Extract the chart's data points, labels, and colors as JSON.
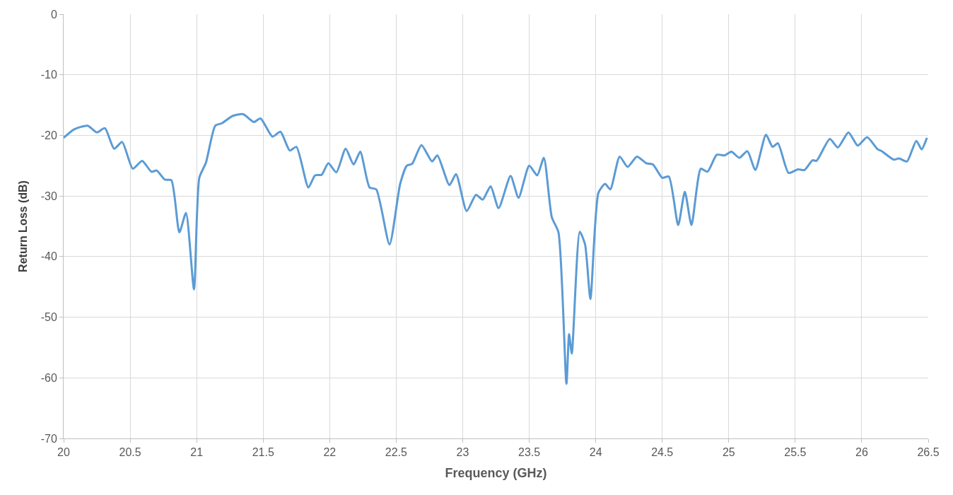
{
  "chart_data": {
    "type": "line",
    "xlabel": "Frequency (GHz)",
    "ylabel": "Return Loss (dB)",
    "xlim": [
      20,
      26.5
    ],
    "xticks": [
      20,
      20.5,
      21,
      21.5,
      22,
      22.5,
      23,
      23.5,
      24,
      24.5,
      25,
      25.5,
      26,
      26.5
    ],
    "ylim": [
      -70,
      0
    ],
    "yticks": [
      -70,
      -60,
      -50,
      -40,
      -30,
      -20,
      -10,
      0
    ],
    "grid": true,
    "marker": "none",
    "line_style": "solid",
    "series": [
      {
        "color": "#5b9bd5",
        "x": [
          20.0,
          20.08,
          20.18,
          20.25,
          20.31,
          20.38,
          20.44,
          20.52,
          20.59,
          20.66,
          20.7,
          20.76,
          20.81,
          20.87,
          20.92,
          20.98,
          21.02,
          21.07,
          21.14,
          21.19,
          21.27,
          21.35,
          21.43,
          21.48,
          21.57,
          21.63,
          21.7,
          21.75,
          21.84,
          21.89,
          21.94,
          21.99,
          22.05,
          22.12,
          22.18,
          22.23,
          22.3,
          22.35,
          22.45,
          22.53,
          22.58,
          22.62,
          22.69,
          22.77,
          22.81,
          22.9,
          22.95,
          23.03,
          23.1,
          23.15,
          23.21,
          23.27,
          23.36,
          23.42,
          23.5,
          23.56,
          23.61,
          23.67,
          23.72,
          23.78,
          23.8,
          23.82,
          23.88,
          23.92,
          23.96,
          24.02,
          24.07,
          24.11,
          24.18,
          24.24,
          24.31,
          24.38,
          24.43,
          24.5,
          24.55,
          24.62,
          24.67,
          24.72,
          24.79,
          24.84,
          24.91,
          24.97,
          25.02,
          25.08,
          25.14,
          25.2,
          25.28,
          25.33,
          25.37,
          25.45,
          25.52,
          25.57,
          25.63,
          25.66,
          25.76,
          25.82,
          25.9,
          25.97,
          26.04,
          26.12,
          26.15,
          26.24,
          26.28,
          26.34,
          26.41,
          26.45,
          26.49
        ],
        "values": [
          -20.4,
          -19.0,
          -18.4,
          -19.5,
          -18.8,
          -22.2,
          -21.1,
          -25.5,
          -24.2,
          -26.0,
          -25.8,
          -27.3,
          -27.4,
          -36.0,
          -32.8,
          -45.4,
          -27.0,
          -24.5,
          -18.4,
          -18.0,
          -16.8,
          -16.5,
          -17.8,
          -17.2,
          -20.2,
          -19.4,
          -22.5,
          -21.9,
          -28.6,
          -26.6,
          -26.5,
          -24.6,
          -26.1,
          -22.2,
          -24.8,
          -22.7,
          -28.6,
          -28.9,
          -38.0,
          -28.0,
          -25.0,
          -24.7,
          -21.6,
          -24.3,
          -23.3,
          -28.2,
          -26.4,
          -32.5,
          -29.8,
          -30.6,
          -28.4,
          -32.0,
          -26.7,
          -30.3,
          -25.0,
          -26.6,
          -23.7,
          -33.5,
          -36.0,
          -61.0,
          -52.8,
          -56.0,
          -35.9,
          -38.0,
          -47.0,
          -29.5,
          -28.0,
          -28.9,
          -23.5,
          -25.2,
          -23.5,
          -24.6,
          -24.8,
          -27.0,
          -26.8,
          -34.8,
          -29.3,
          -34.8,
          -25.5,
          -26.0,
          -23.2,
          -23.3,
          -22.7,
          -23.7,
          -22.6,
          -25.7,
          -19.9,
          -21.9,
          -21.3,
          -26.2,
          -25.6,
          -25.7,
          -24.1,
          -24.2,
          -20.6,
          -22.0,
          -19.5,
          -21.7,
          -20.3,
          -22.3,
          -22.6,
          -24.0,
          -23.8,
          -24.3,
          -20.9,
          -22.3,
          -20.4
        ]
      }
    ]
  }
}
